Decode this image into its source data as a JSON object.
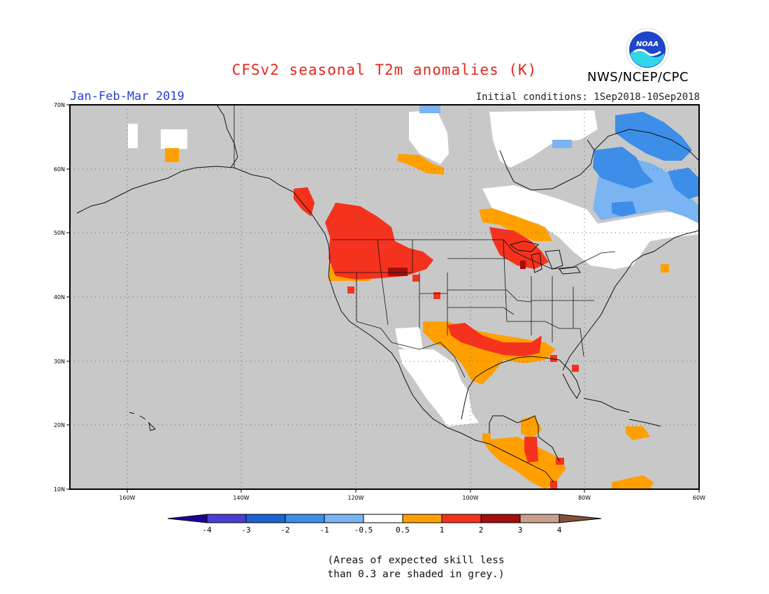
{
  "title": "CFSv2 seasonal T2m anomalies (K)",
  "agency": "NWS/NCEP/CPC",
  "logo_text": "NOAA",
  "period": "Jan-Feb-Mar 2019",
  "initial_conditions": "Initial conditions: 1Sep2018-10Sep2018",
  "lat_labels": [
    "70N",
    "60N",
    "50N",
    "40N",
    "30N",
    "20N",
    "10N"
  ],
  "lon_labels": [
    "160W",
    "140W",
    "120W",
    "100W",
    "80W",
    "60W"
  ],
  "colorbar": {
    "labels": [
      "-4",
      "-3",
      "-2",
      "-1",
      "-0.5",
      "0.5",
      "1",
      "2",
      "3",
      "4"
    ],
    "colors": {
      "lt_-4": "#1e0099",
      "-4_-3": "#4a3ed4",
      "-3_-2": "#1e64d2",
      "-2_-1": "#3c8ee8",
      "-1_-0.5": "#7ab4f2",
      "-0.5_0.5": "#ffffff",
      "0.5_1": "#ffa000",
      "1_2": "#f5321e",
      "2_3": "#a50d0d",
      "3_4": "#c8a08c",
      "gt_4": "#82503c"
    }
  },
  "skill_mask_color": "#c8c8c8",
  "footnote": [
    "(Areas of expected skill less",
    "than 0.3 are shaded in grey.)"
  ],
  "map_data": {
    "projection": "equirectangular",
    "lon_range": [
      -170,
      -60
    ],
    "lat_range": [
      10,
      70
    ],
    "anomaly_regions": [
      {
        "name": "Pacific Northwest / Northern Rockies",
        "category": "1_2"
      },
      {
        "name": "Southern Plains / Gulf Coast",
        "category": "1_2"
      },
      {
        "name": "Texas / Gulf of Mexico coast",
        "category": "0.5_1"
      },
      {
        "name": "Great Lakes",
        "category": "1_2"
      },
      {
        "name": "Ontario / Quebec",
        "category": "0.5_1"
      },
      {
        "name": "Labrador / Baffin",
        "category": "-2_-1"
      },
      {
        "name": "Northern Mexico",
        "category": "-0.5_0.5"
      },
      {
        "name": "Central America",
        "category": "0.5_1"
      },
      {
        "name": "Caribbean",
        "category": "0.5_1"
      }
    ]
  }
}
